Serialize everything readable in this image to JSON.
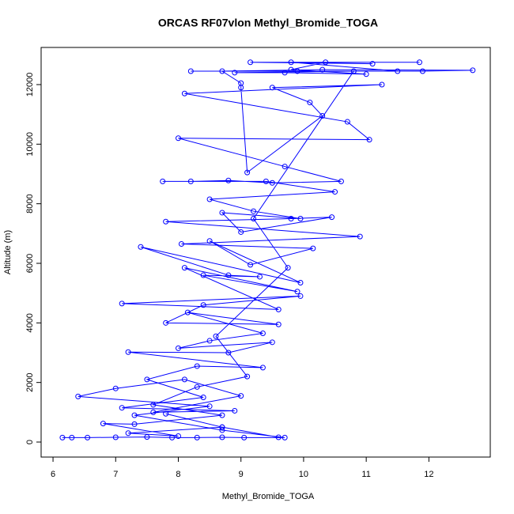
{
  "chart_data": {
    "type": "line",
    "title": "ORCAS RF07vlon Methyl_Bromide_TOGA",
    "x_label": "Methyl_Bromide_TOGA",
    "y_label": "Altitude (m)",
    "color": "#0000ff",
    "markers": true,
    "grid": false,
    "xlim": [
      5.81,
      12.98
    ],
    "ylim": [
      -504,
      13247
    ],
    "xticks": [
      6,
      7,
      8,
      9,
      10,
      11,
      12
    ],
    "yticks": [
      0,
      2000,
      4000,
      6000,
      8000,
      10000,
      12000
    ],
    "x": [
      6.15,
      6.3,
      6.55,
      7.0,
      7.5,
      7.9,
      8.3,
      8.7,
      9.05,
      9.7,
      8.7,
      7.3,
      8.5,
      6.4,
      7.0,
      8.1,
      9.0,
      7.6,
      8.9,
      7.1,
      8.4,
      7.5,
      8.3,
      9.35,
      7.2,
      8.8,
      9.5,
      8.0,
      8.5,
      9.35,
      8.15,
      9.6,
      7.8,
      8.4,
      9.95,
      7.1,
      9.6,
      8.1,
      9.9,
      8.4,
      9.3,
      8.8,
      7.4,
      9.95,
      8.5,
      9.15,
      10.15,
      8.05,
      10.9,
      7.8,
      9.8,
      10.45,
      9.0,
      8.7,
      9.95,
      9.2,
      8.5,
      10.5,
      9.4,
      7.75,
      8.2,
      8.8,
      9.5,
      10.6,
      9.7,
      8.0,
      11.05,
      10.7,
      8.1,
      11.25,
      9.5,
      10.1,
      10.3,
      9.1,
      9.0,
      9.0,
      8.7,
      10.3,
      12.7,
      11.9,
      8.2,
      9.9,
      11.5,
      9.8,
      11.1,
      9.15,
      11.85,
      10.35,
      9.8,
      11.0,
      9.7,
      8.9,
      10.8,
      9.2,
      9.75,
      8.6,
      9.1,
      8.3,
      7.6,
      8.7,
      7.3,
      6.8,
      8.0,
      7.2,
      8.7,
      7.8,
      8.7,
      9.6
    ],
    "values": [
      150,
      150,
      150,
      160,
      170,
      150,
      150,
      160,
      150,
      150,
      400,
      900,
      1200,
      1530,
      1800,
      2100,
      1550,
      1000,
      1050,
      1150,
      1500,
      2100,
      2550,
      2500,
      3020,
      3000,
      3350,
      3150,
      3400,
      3650,
      4350,
      3950,
      4000,
      4600,
      4900,
      4650,
      4450,
      5850,
      5050,
      5600,
      5550,
      5600,
      6550,
      5350,
      6750,
      5950,
      6500,
      6650,
      6900,
      7400,
      7500,
      7550,
      7050,
      7700,
      7500,
      7750,
      8150,
      8400,
      8750,
      8750,
      8750,
      8780,
      8700,
      8750,
      9250,
      10200,
      10150,
      10750,
      11700,
      12000,
      11900,
      11400,
      10950,
      9050,
      11900,
      12050,
      12450,
      12500,
      12480,
      12450,
      12450,
      12450,
      12450,
      12750,
      12700,
      12750,
      12750,
      12750,
      12500,
      12350,
      12400,
      12400,
      12450,
      7500,
      5850,
      3550,
      2200,
      1850,
      1250,
      900,
      600,
      620,
      200,
      300,
      500,
      950,
      500,
      160
    ]
  }
}
